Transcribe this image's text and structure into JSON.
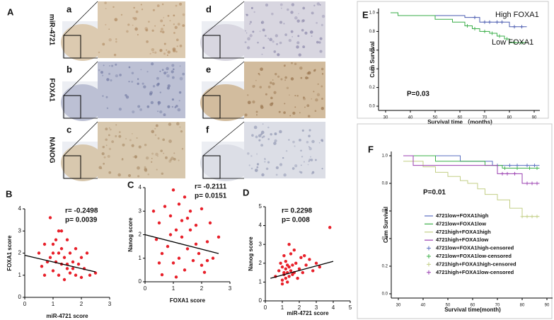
{
  "panel_a": {
    "label": "A",
    "row_labels": [
      "miR-4721",
      "FOXA1",
      "NANOG"
    ],
    "image_labels": [
      "a",
      "b",
      "c",
      "d",
      "e",
      "f"
    ]
  },
  "chart_data": [
    {
      "type": "scatter",
      "label": "B",
      "x_label": "miR-4721 score",
      "y_label": "FOXA1 score",
      "color": "#e8202a",
      "x": [
        0.5,
        0.6,
        0.7,
        0.8,
        0.9,
        1.0,
        1.0,
        1.1,
        1.1,
        1.2,
        1.2,
        1.3,
        1.3,
        1.4,
        1.4,
        1.5,
        1.5,
        1.6,
        1.6,
        1.7,
        1.8,
        1.8,
        1.9,
        2.0,
        2.0,
        2.1,
        2.2,
        2.3,
        2.5,
        0.9,
        1.2,
        1.5,
        0.7,
        1.0,
        1.3,
        1.7
      ],
      "y": [
        2.0,
        1.4,
        2.4,
        1.6,
        3.6,
        2.0,
        1.2,
        2.6,
        1.6,
        3.0,
        1.0,
        2.2,
        1.5,
        1.8,
        0.8,
        2.6,
        1.3,
        2.0,
        1.1,
        1.6,
        2.2,
        1.0,
        1.5,
        1.8,
        0.9,
        1.3,
        2.0,
        1.0,
        1.1,
        1.8,
        2.0,
        1.5,
        1.0,
        2.4,
        3.0,
        1.3
      ],
      "trend": {
        "x": [
          0,
          2.5
        ],
        "y": [
          1.9,
          1.15
        ],
        "color": "#000000"
      },
      "xlim": [
        0,
        3
      ],
      "xticks": [
        0,
        1,
        2,
        3
      ],
      "ylim": [
        0,
        4
      ],
      "yticks": [
        0,
        1,
        2,
        3,
        4
      ],
      "annotations": [
        "r= -0.2498",
        "p= 0.0039"
      ]
    },
    {
      "type": "scatter",
      "label": "C",
      "x_label": "FOXA1 score",
      "y_label": "Nanog score",
      "color": "#e8202a",
      "x": [
        0.3,
        0.4,
        0.5,
        0.6,
        0.7,
        0.8,
        0.9,
        1.0,
        1.0,
        1.1,
        1.2,
        1.2,
        1.3,
        1.4,
        1.5,
        1.5,
        1.6,
        1.7,
        1.8,
        1.9,
        2.0,
        2.1,
        2.2,
        2.3,
        2.4,
        2.6,
        0.6,
        1.1,
        1.4,
        1.8,
        2.0,
        0.9,
        1.6,
        2.2,
        1.3,
        0.5
      ],
      "y": [
        3.0,
        1.8,
        2.5,
        0.3,
        3.2,
        1.5,
        2.8,
        3.9,
        0.8,
        2.2,
        1.0,
        3.3,
        1.9,
        0.5,
        2.7,
        1.4,
        3.0,
        0.9,
        2.4,
        1.2,
        3.1,
        0.4,
        1.7,
        2.5,
        1.0,
        1.9,
        1.2,
        0.2,
        3.6,
        1.6,
        0.7,
        2.0,
        2.2,
        0.9,
        2.6,
        0.8
      ],
      "trend": {
        "x": [
          0,
          2.6
        ],
        "y": [
          2.0,
          1.2
        ],
        "color": "#000000"
      },
      "xlim": [
        0,
        3
      ],
      "xticks": [
        0,
        1,
        2,
        3
      ],
      "ylim": [
        0,
        4
      ],
      "yticks": [
        0,
        1,
        2,
        3,
        4
      ],
      "annotations": [
        "r= -0.2111",
        "p= 0.0151"
      ]
    },
    {
      "type": "scatter",
      "label": "D",
      "x_label": "miR-4721 score",
      "y_label": "Nanog score",
      "color": "#e8202a",
      "x": [
        0.6,
        0.8,
        0.9,
        1.0,
        1.0,
        1.1,
        1.1,
        1.2,
        1.2,
        1.2,
        1.3,
        1.3,
        1.3,
        1.4,
        1.4,
        1.5,
        1.5,
        1.6,
        1.6,
        1.7,
        1.8,
        1.9,
        2.0,
        2.1,
        2.2,
        2.4,
        2.6,
        2.8,
        3.0,
        3.2,
        3.8,
        1.0,
        1.4,
        1.7,
        2.3,
        1.1
      ],
      "y": [
        1.3,
        1.6,
        2.0,
        1.1,
        1.8,
        1.4,
        2.4,
        1.2,
        1.7,
        2.1,
        1.0,
        1.5,
        1.9,
        1.3,
        1.8,
        1.6,
        2.5,
        1.4,
        1.9,
        1.5,
        2.0,
        1.2,
        1.7,
        2.3,
        1.5,
        1.9,
        2.2,
        1.6,
        2.0,
        1.8,
        3.9,
        0.9,
        3.0,
        2.7,
        2.4,
        1.5
      ],
      "trend": {
        "x": [
          0.3,
          4
        ],
        "y": [
          1.2,
          2.1
        ],
        "color": "#000000"
      },
      "xlim": [
        0,
        5
      ],
      "xticks": [
        0,
        1,
        2,
        3,
        4,
        5
      ],
      "ylim": [
        0,
        5
      ],
      "yticks": [
        0,
        1,
        2,
        3,
        4,
        5
      ],
      "annotations": [
        "r= 0.2298",
        "p= 0.008"
      ]
    },
    {
      "type": "survival",
      "label": "E",
      "x_label": "Survival time （months)",
      "y_label": "Cum Survival",
      "legend": false,
      "xlim": [
        30,
        90
      ],
      "xticks": [
        30,
        40,
        50,
        60,
        70,
        80,
        90
      ],
      "ylim": [
        0,
        1
      ],
      "yticks": [
        {
          "value": 0,
          "label": "0.0"
        },
        0.2,
        0.4,
        0.6,
        0.8,
        {
          "value": 1,
          "label": "1.0"
        }
      ],
      "series": [
        {
          "name": "High FOXA1",
          "color": "#4a5bb0",
          "x": [
            32,
            35,
            62,
            68,
            80,
            87
          ],
          "y": [
            1.0,
            0.97,
            0.95,
            0.9,
            0.85,
            0.85
          ],
          "censor_x": [
            66,
            70,
            72,
            75,
            77,
            82,
            85
          ],
          "censor_y": [
            0.95,
            0.9,
            0.9,
            0.9,
            0.9,
            0.85,
            0.85
          ]
        },
        {
          "name": "Low FOXA1",
          "color": "#3aae48",
          "x": [
            32,
            35,
            50,
            57,
            62,
            65,
            68,
            72,
            75,
            78,
            80,
            87
          ],
          "y": [
            1.0,
            0.97,
            0.93,
            0.9,
            0.86,
            0.83,
            0.8,
            0.78,
            0.75,
            0.72,
            0.68,
            0.68
          ],
          "censor_x": [
            63,
            66,
            70,
            73,
            76,
            79,
            82,
            85
          ],
          "censor_y": [
            0.86,
            0.83,
            0.8,
            0.78,
            0.75,
            0.72,
            0.68,
            0.68
          ]
        }
      ],
      "annotations": [
        "P=0.03"
      ]
    },
    {
      "type": "survival",
      "label": "F",
      "x_label": "Survival time(month)",
      "y_label": "Cum Survival",
      "legend": true,
      "xlim": [
        30,
        90
      ],
      "xticks": [
        30,
        40,
        50,
        60,
        70,
        80,
        90
      ],
      "ylim": [
        0,
        1
      ],
      "yticks": [
        {
          "value": 0,
          "label": "0.0"
        },
        0.2,
        0.4,
        0.6,
        0.8,
        {
          "value": 1,
          "label": "1.0"
        }
      ],
      "series": [
        {
          "name": "4721low+FOXA1high",
          "censor_name": "4721low+FOXA1high-censored",
          "color": "#5a6fc0",
          "x": [
            32,
            55,
            68,
            87
          ],
          "y": [
            1.0,
            0.96,
            0.93,
            0.93
          ],
          "censor_x": [
            70,
            75,
            78,
            82,
            85
          ],
          "censor_y": [
            0.93,
            0.93,
            0.93,
            0.93,
            0.93
          ]
        },
        {
          "name": "4721low+FOXA1low",
          "censor_name": "4721low+FOXA1low-censored",
          "color": "#3cb04a",
          "x": [
            32,
            45,
            65,
            72,
            87
          ],
          "y": [
            1.0,
            0.96,
            0.93,
            0.91,
            0.91
          ],
          "censor_x": [
            73,
            78,
            83,
            86
          ],
          "censor_y": [
            0.91,
            0.91,
            0.91,
            0.91
          ]
        },
        {
          "name": "4721high+FOXA1high",
          "censor_name": "4721high+FOXA1high-censored",
          "color": "#c3cf86",
          "x": [
            32,
            40,
            45,
            50,
            55,
            58,
            62,
            65,
            70,
            75,
            80,
            87
          ],
          "y": [
            0.96,
            0.92,
            0.88,
            0.85,
            0.82,
            0.8,
            0.76,
            0.72,
            0.68,
            0.62,
            0.56,
            0.56
          ],
          "censor_x": [
            80,
            82,
            84,
            86
          ],
          "censor_y": [
            0.56,
            0.56,
            0.56,
            0.56
          ]
        },
        {
          "name": "4721high+FOXA1low",
          "censor_name": "4721high+FOXA1low-censored",
          "color": "#9a3fb0",
          "x": [
            32,
            36,
            70,
            80,
            87
          ],
          "y": [
            1.0,
            0.93,
            0.87,
            0.8,
            0.8
          ],
          "censor_x": [
            72,
            74,
            77,
            82,
            84,
            86
          ],
          "censor_y": [
            0.87,
            0.87,
            0.87,
            0.8,
            0.8,
            0.8
          ]
        }
      ],
      "annotations": [
        "P=0.01"
      ]
    }
  ]
}
